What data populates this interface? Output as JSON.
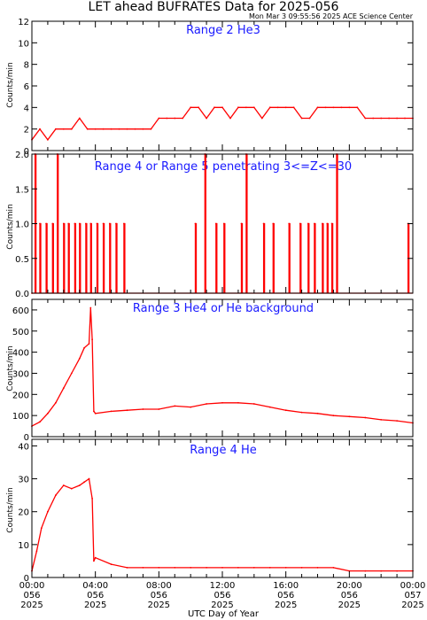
{
  "figure": {
    "title": "LET ahead BUFRATES Data for 2025-056",
    "timestamp": "Mon Mar  3 09:55:56 2025 ACE Science Center",
    "xlabel": "UTC Day of Year",
    "line_color": "#ff0000",
    "title_color": "#1a1aff"
  },
  "chart_data": [
    {
      "type": "line",
      "title": "Range 2 He3",
      "ylabel": "Counts/min",
      "ylim": [
        0,
        12
      ],
      "yticks": [
        0,
        2,
        4,
        6,
        8,
        10,
        12
      ],
      "xlim": [
        0,
        24
      ],
      "series": [
        {
          "x": [
            0,
            0.5,
            1,
            1.5,
            2,
            2.5,
            3,
            3.5,
            4,
            4.5,
            5,
            5.5,
            6,
            6.5,
            7,
            7.5,
            8,
            8.5,
            9,
            9.5,
            10,
            10.5,
            11,
            11.5,
            12,
            12.5,
            13,
            13.5,
            14,
            14.5,
            15,
            15.5,
            16,
            16.5,
            17,
            17.5,
            18,
            18.5,
            19,
            19.5,
            20,
            20.5,
            21,
            21.5,
            22,
            22.5,
            23,
            23.5,
            24
          ],
          "y": [
            1,
            2,
            1,
            2,
            2,
            2,
            3,
            2,
            2,
            2,
            2,
            2,
            2,
            2,
            2,
            2,
            3,
            3,
            3,
            3,
            4,
            4,
            3,
            4,
            4,
            3,
            4,
            4,
            4,
            3,
            4,
            4,
            4,
            4,
            3,
            3,
            4,
            4,
            4,
            4,
            4,
            4,
            3,
            3,
            3,
            3,
            3,
            3,
            3
          ]
        }
      ]
    },
    {
      "type": "line",
      "title": "Range 4 or Range 5 penetrating 3<=Z<=30",
      "ylabel": "Counts/min",
      "ylim": [
        0,
        2
      ],
      "yticks": [
        "0.0",
        "0.5",
        "1.0",
        "1.5",
        "2.0"
      ],
      "xlim": [
        0,
        24
      ],
      "series": [
        {
          "x": [
            0,
            0.2,
            0.5,
            0.9,
            1.3,
            1.6,
            2.0,
            2.3,
            2.7,
            3.0,
            3.4,
            3.7,
            4.1,
            4.5,
            4.9,
            5.3,
            5.8,
            10.3,
            10.9,
            11.6,
            12.1,
            13.2,
            13.5,
            14.6,
            15.2,
            16.2,
            16.9,
            17.4,
            17.8,
            18.3,
            18.6,
            18.9,
            19.2,
            23.7
          ],
          "y": [
            0,
            2,
            1,
            1,
            1,
            2,
            1,
            1,
            1,
            1,
            1,
            1,
            1,
            1,
            1,
            1,
            1,
            1,
            2,
            1,
            1,
            1,
            2,
            1,
            1,
            1,
            1,
            1,
            1,
            1,
            1,
            1,
            2,
            1
          ]
        }
      ]
    },
    {
      "type": "line",
      "title": "Range 3 He4 or He background",
      "ylabel": "Counts/min",
      "ylim": [
        0,
        650
      ],
      "yticks": [
        0,
        100,
        200,
        300,
        400,
        500,
        600
      ],
      "xlim": [
        0,
        24
      ],
      "series": [
        {
          "x": [
            0,
            0.5,
            1,
            1.5,
            2,
            2.5,
            3,
            3.3,
            3.6,
            3.7,
            3.8,
            3.9,
            4,
            5,
            6,
            7,
            8,
            9,
            10,
            11,
            12,
            13,
            14,
            15,
            16,
            17,
            18,
            19,
            20,
            21,
            22,
            23,
            24
          ],
          "y": [
            50,
            70,
            110,
            160,
            230,
            300,
            370,
            420,
            440,
            610,
            460,
            120,
            110,
            120,
            125,
            130,
            130,
            145,
            140,
            155,
            160,
            160,
            155,
            140,
            125,
            115,
            110,
            100,
            95,
            90,
            80,
            75,
            65
          ]
        }
      ]
    },
    {
      "type": "line",
      "title": "Range 4 He",
      "ylabel": "Counts/min",
      "ylim": [
        0,
        42
      ],
      "yticks": [
        0,
        10,
        20,
        30,
        40
      ],
      "xlim": [
        0,
        24
      ],
      "xticks": [
        [
          "00:00",
          "056",
          "2025"
        ],
        [
          "04:00",
          "056",
          "2025"
        ],
        [
          "08:00",
          "056",
          "2025"
        ],
        [
          "12:00",
          "056",
          "2025"
        ],
        [
          "16:00",
          "056",
          "2025"
        ],
        [
          "20:00",
          "056",
          "2025"
        ],
        [
          "00:00",
          "057",
          "2025"
        ]
      ],
      "series": [
        {
          "x": [
            0,
            0.3,
            0.6,
            1,
            1.5,
            2,
            2.5,
            3,
            3.3,
            3.6,
            3.8,
            3.9,
            4,
            5,
            6,
            7,
            8,
            9,
            10,
            11,
            12,
            13,
            14,
            15,
            16,
            17,
            18,
            19,
            20,
            21,
            22,
            23,
            24
          ],
          "y": [
            2,
            8,
            15,
            20,
            25,
            28,
            27,
            28,
            29,
            30,
            24,
            5,
            6,
            4,
            3,
            3,
            3,
            3,
            3,
            3,
            3,
            3,
            3,
            3,
            3,
            3,
            3,
            3,
            2,
            2,
            2,
            2,
            2
          ]
        }
      ]
    }
  ]
}
